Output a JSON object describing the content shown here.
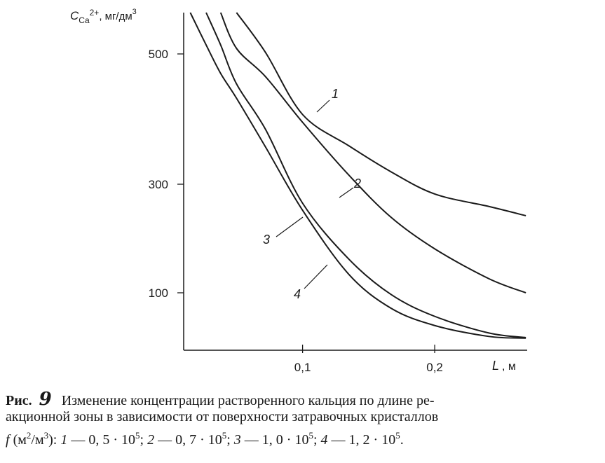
{
  "chart_data": {
    "type": "line",
    "y_label": {
      "symbol": "C",
      "subscript": "Ca",
      "charge": "2+",
      "unit": ", мг/дм",
      "unit_power": "3"
    },
    "x_label": {
      "symbol": "L",
      "unit": ", м"
    },
    "x": [
      0.015,
      0.027,
      0.038,
      0.05,
      0.072,
      0.1,
      0.135,
      0.167,
      0.2,
      0.241,
      0.269
    ],
    "series": [
      {
        "name": "1",
        "color": "#1a1a1a",
        "values": [
          null,
          null,
          null,
          560,
          502,
          407,
          359,
          319,
          282,
          259,
          242
        ]
      },
      {
        "name": "2",
        "color": "#1a1a1a",
        "values": [
          null,
          null,
          560,
          508,
          465,
          395,
          314,
          239,
          181,
          126,
          100
        ]
      },
      {
        "name": "3",
        "color": "#1a1a1a",
        "values": [
          null,
          560,
          513,
          454,
          384,
          265,
          162,
          97,
          59,
          30,
          22
        ]
      },
      {
        "name": "4",
        "color": "#1a1a1a",
        "values": [
          560,
          513,
          470,
          432,
          357,
          252,
          134,
          73,
          43,
          24,
          21
        ]
      }
    ],
    "xlim": [
      0.01,
      0.27
    ],
    "ylim": [
      0,
      560
    ],
    "xticks": [
      {
        "value": 0.1,
        "label": "0,1"
      },
      {
        "value": 0.2,
        "label": "0,2"
      }
    ],
    "yticks": [
      100,
      300,
      500
    ]
  },
  "caption": {
    "label": "Рис.",
    "number": "9",
    "line1": "Изменение концентрации растворенного кальция по длине ре-",
    "line2": "акционной зоны в зависимости от поверхности затравочных кристаллов",
    "symbol": "f",
    "unit_open": " (м",
    "unit_p1": "2",
    "unit_mid": "/м",
    "unit_p2": "3",
    "unit_close": "): ",
    "items": [
      {
        "num": "1",
        "text": " — 0, 5 · 10",
        "exp": "5",
        "sep": "; "
      },
      {
        "num": "2",
        "text": " — 0, 7 · 10",
        "exp": "5",
        "sep": "; "
      },
      {
        "num": "3",
        "text": " — 1, 0 · 10",
        "exp": "5",
        "sep": "; "
      },
      {
        "num": "4",
        "text": " — 1, 2 · 10",
        "exp": "5",
        "sep": "."
      }
    ]
  }
}
